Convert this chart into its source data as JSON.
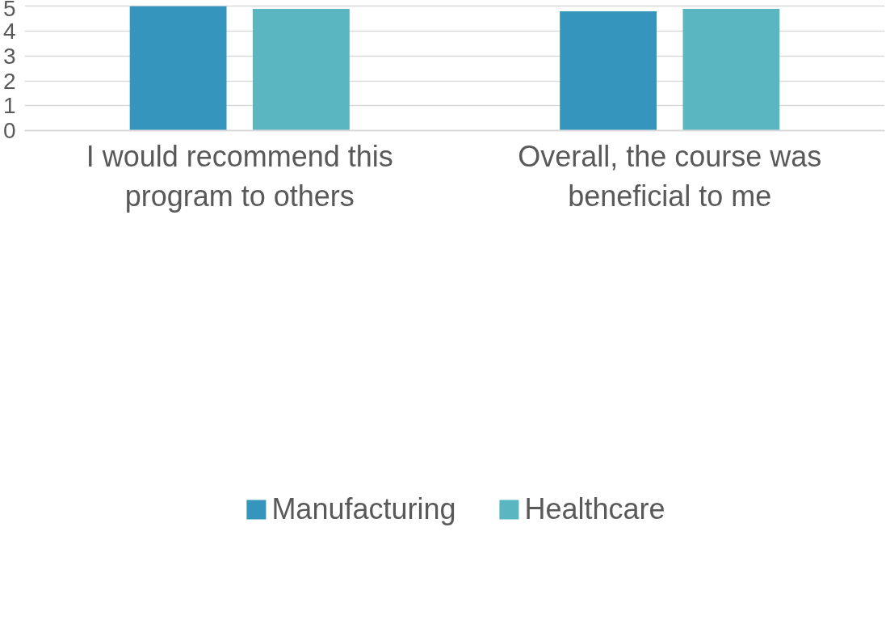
{
  "chart_data": {
    "type": "bar",
    "categories": [
      "I would recommend this program to others",
      "Overall, the course was beneficial to me"
    ],
    "series": [
      {
        "name": "Manufacturing",
        "color": "#3595bc",
        "values": [
          5.0,
          4.8
        ]
      },
      {
        "name": "Healthcare",
        "color": "#5ab6c0",
        "values": [
          4.9,
          4.9
        ]
      }
    ],
    "ylim": [
      0,
      5
    ],
    "yticks": [
      0,
      1,
      2,
      3,
      4,
      5
    ],
    "grid": "y",
    "legend": "bottom"
  }
}
